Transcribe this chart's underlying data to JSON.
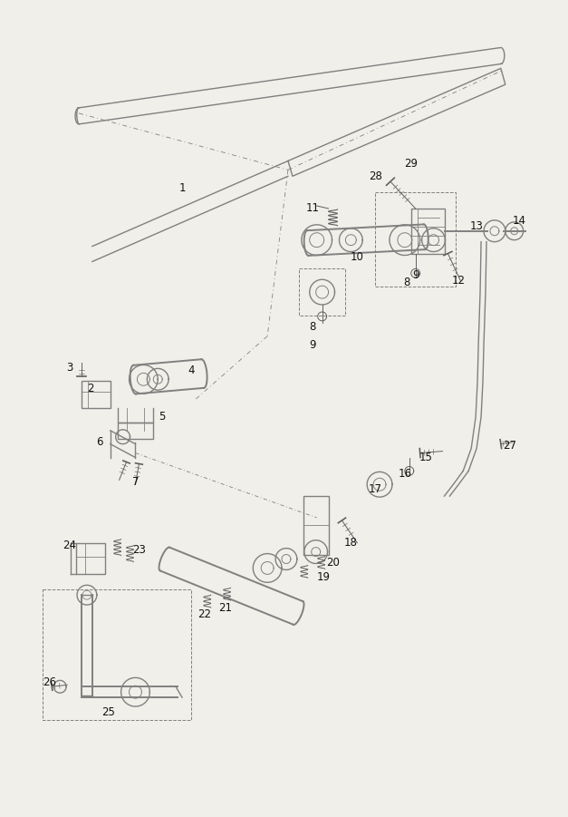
{
  "bg_color": "#f0efe9",
  "line_color": "#808080",
  "dark_line": "#606060",
  "label_color": "#111111",
  "figsize": [
    6.27,
    9.01
  ],
  "dpi": 100
}
